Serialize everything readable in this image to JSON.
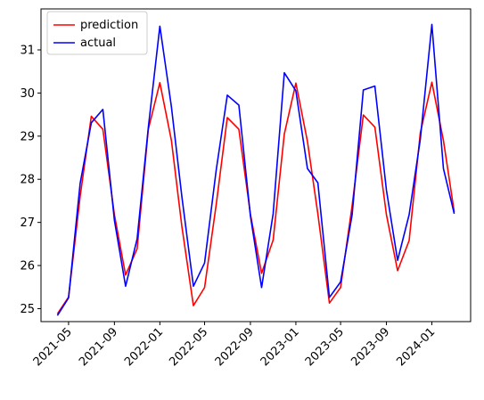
{
  "chart_data": {
    "type": "line",
    "title": "",
    "xlabel": "",
    "ylabel": "",
    "x": [
      "2021-04",
      "2021-05",
      "2021-06",
      "2021-07",
      "2021-08",
      "2021-09",
      "2021-10",
      "2021-11",
      "2021-12",
      "2022-01",
      "2022-02",
      "2022-03",
      "2022-04",
      "2022-05",
      "2022-06",
      "2022-07",
      "2022-08",
      "2022-09",
      "2022-10",
      "2022-11",
      "2022-12",
      "2023-01",
      "2023-02",
      "2023-03",
      "2023-04",
      "2023-05",
      "2023-06",
      "2023-07",
      "2023-08",
      "2023-09",
      "2023-10",
      "2023-11",
      "2023-12",
      "2024-01",
      "2024-02",
      "2024-03"
    ],
    "ylim": [
      24.7,
      31.95
    ],
    "xlim": [
      "2021-02-16",
      "2024-04-14"
    ],
    "x_ticks": [
      "2021-05",
      "2021-09",
      "2022-01",
      "2022-05",
      "2022-09",
      "2023-01",
      "2023-05",
      "2023-09",
      "2024-01"
    ],
    "y_ticks": [
      25,
      26,
      27,
      28,
      29,
      30,
      31
    ],
    "legend_position": "top-left",
    "grid": false,
    "series": [
      {
        "name": "prediction",
        "color": "#ff0000",
        "values": [
          24.88,
          25.27,
          27.6,
          29.46,
          29.16,
          27.18,
          25.78,
          26.39,
          29.16,
          30.24,
          28.9,
          26.91,
          25.07,
          25.49,
          27.4,
          29.43,
          29.16,
          27.19,
          25.82,
          26.59,
          29.05,
          30.23,
          28.88,
          27.2,
          25.13,
          25.49,
          27.39,
          29.49,
          29.21,
          27.18,
          25.88,
          26.58,
          29.08,
          30.25,
          28.9,
          27.24
        ]
      },
      {
        "name": "actual",
        "color": "#0000ff",
        "values": [
          24.84,
          25.25,
          27.9,
          29.31,
          29.62,
          27.05,
          25.52,
          26.62,
          29.2,
          31.55,
          29.68,
          27.6,
          25.52,
          26.06,
          28.2,
          29.95,
          29.72,
          27.15,
          25.49,
          27.2,
          30.47,
          30.05,
          28.25,
          27.92,
          25.26,
          25.62,
          27.18,
          30.07,
          30.16,
          27.75,
          26.12,
          27.18,
          28.93,
          31.59,
          28.25,
          27.2
        ]
      }
    ]
  }
}
